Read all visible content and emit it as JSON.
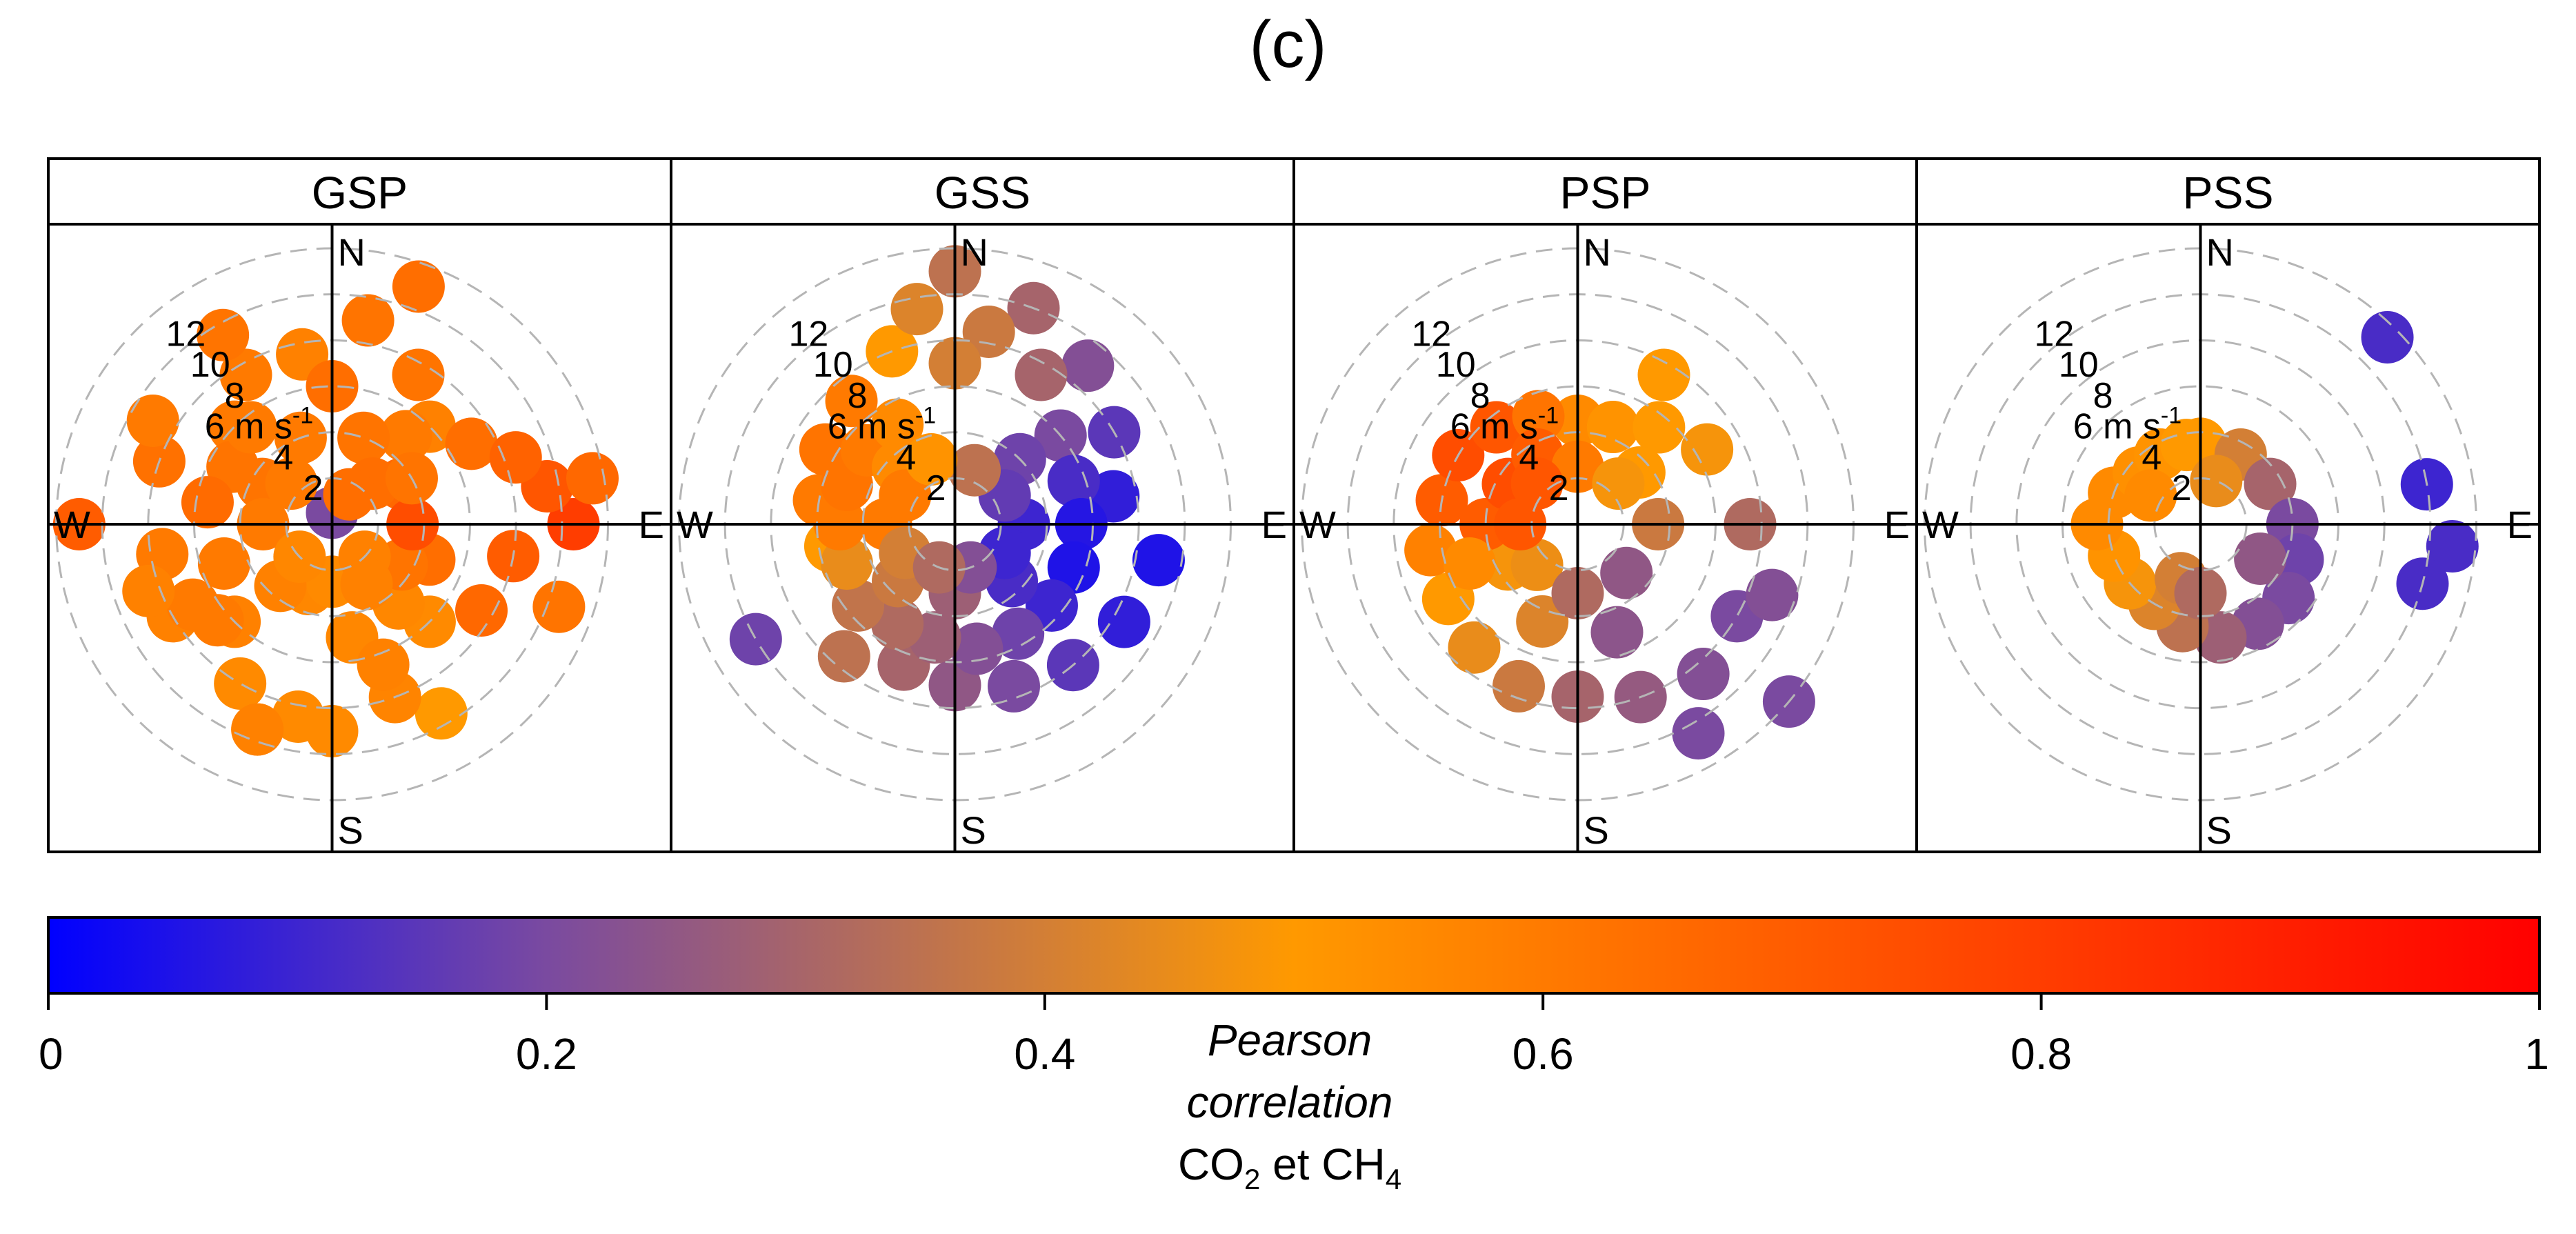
{
  "figure_label": "(c)",
  "chart_data": {
    "type": "polar-scatter",
    "panels": [
      {
        "name": "GSP",
        "points": [
          [
            180,
            0.55
          ],
          [
            150,
            0.5
          ],
          [
            200,
            0.6
          ],
          [
            90,
            0.8
          ],
          [
            270,
            0.7
          ],
          [
            0,
            0.2
          ],
          [
            45,
            0.58
          ],
          [
            135,
            0.55
          ],
          [
            225,
            0.58
          ],
          [
            315,
            0.6
          ],
          [
            30,
            0.62
          ],
          [
            60,
            0.64
          ],
          [
            100,
            0.7
          ],
          [
            120,
            0.66
          ],
          [
            160,
            0.57
          ],
          [
            190,
            0.55
          ],
          [
            210,
            0.55
          ],
          [
            240,
            0.58
          ],
          [
            260,
            0.6
          ],
          [
            290,
            0.63
          ],
          [
            330,
            0.6
          ],
          [
            350,
            0.58
          ],
          [
            10,
            0.62
          ],
          [
            80,
            0.72
          ],
          [
            70,
            0.68
          ],
          [
            230,
            0.6
          ],
          [
            300,
            0.62
          ],
          [
            320,
            0.6
          ],
          [
            170,
            0.56
          ],
          [
            110,
            0.64
          ],
          [
            40,
            0.6
          ],
          [
            280,
            0.65
          ],
          [
            250,
            0.6
          ],
          [
            140,
            0.56
          ],
          [
            200,
            0.56
          ],
          [
            20,
            0.62
          ],
          [
            340,
            0.6
          ],
          [
            180,
            0.55
          ],
          [
            60,
            0.66
          ],
          [
            300,
            0.62
          ],
          [
            120,
            0.62
          ],
          [
            90,
            0.75
          ],
          [
            270,
            0.6
          ],
          [
            220,
            0.58
          ],
          [
            45,
            0.64
          ],
          [
            315,
            0.6
          ],
          [
            135,
            0.58
          ],
          [
            225,
            0.56
          ],
          [
            160,
            0.58
          ],
          [
            240,
            0.6
          ],
          [
            20,
            0.64
          ],
          [
            330,
            0.62
          ],
          [
            80,
            0.66
          ],
          [
            110,
            0.62
          ],
          [
            200,
            0.58
          ],
          [
            0,
            0.64
          ],
          [
            150,
            0.58
          ],
          [
            300,
            0.6
          ],
          [
            60,
            0.62
          ],
          [
            250,
            0.58
          ],
          [
            30,
            0.64
          ]
        ],
        "radii": [
          9.0,
          9.5,
          9.5,
          10.5,
          11.0,
          0.5,
          6.0,
          6.0,
          6.0,
          6.0,
          7.5,
          7.0,
          8.0,
          7.5,
          8.0,
          8.5,
          8.0,
          8.0,
          7.5,
          8.0,
          7.5,
          7.5,
          9.0,
          9.5,
          8.5,
          6.5,
          5.0,
          5.5,
          5.0,
          4.5,
          5.0,
          5.5,
          5.0,
          4.5,
          3.0,
          4.0,
          4.0,
          2.5,
          3.5,
          3.5,
          3.5,
          3.5,
          3.0,
          3.5,
          2.5,
          2.5,
          2.0,
          2.0,
          6.5,
          7.0,
          11.0,
          9.5,
          11.5,
          10.5,
          9.5,
          6.0,
          3.0,
          9.0,
          4.0,
          8.5,
          1.5
        ]
      },
      {
        "name": "GSS",
        "points": [
          [
            0,
            0.35
          ],
          [
            20,
            0.3
          ],
          [
            40,
            0.22
          ],
          [
            60,
            0.15
          ],
          [
            80,
            0.08
          ],
          [
            100,
            0.05
          ],
          [
            120,
            0.08
          ],
          [
            140,
            0.15
          ],
          [
            160,
            0.2
          ],
          [
            180,
            0.25
          ],
          [
            200,
            0.3
          ],
          [
            220,
            0.35
          ],
          [
            240,
            0.18
          ],
          [
            260,
            0.5
          ],
          [
            280,
            0.6
          ],
          [
            300,
            0.62
          ],
          [
            320,
            0.6
          ],
          [
            340,
            0.5
          ],
          [
            350,
            0.42
          ],
          [
            10,
            0.38
          ],
          [
            30,
            0.3
          ],
          [
            50,
            0.2
          ],
          [
            70,
            0.12
          ],
          [
            90,
            0.06
          ],
          [
            110,
            0.05
          ],
          [
            130,
            0.1
          ],
          [
            150,
            0.18
          ],
          [
            170,
            0.22
          ],
          [
            190,
            0.28
          ],
          [
            210,
            0.32
          ],
          [
            230,
            0.36
          ],
          [
            250,
            0.45
          ],
          [
            270,
            0.6
          ],
          [
            290,
            0.62
          ],
          [
            310,
            0.6
          ],
          [
            330,
            0.55
          ],
          [
            0,
            0.4
          ],
          [
            45,
            0.18
          ],
          [
            135,
            0.12
          ],
          [
            225,
            0.38
          ],
          [
            315,
            0.55
          ],
          [
            90,
            0.1
          ],
          [
            180,
            0.28
          ],
          [
            270,
            0.6
          ],
          [
            60,
            0.16
          ],
          [
            120,
            0.1
          ],
          [
            240,
            0.4
          ],
          [
            300,
            0.6
          ],
          [
            20,
            0.35
          ],
          [
            160,
            0.22
          ],
          [
            200,
            0.32
          ],
          [
            340,
            0.52
          ]
        ],
        "radii": [
          11.0,
          10.0,
          9.0,
          8.0,
          7.0,
          9.0,
          8.5,
          8.0,
          7.5,
          7.0,
          6.5,
          7.5,
          10.0,
          5.5,
          6.0,
          6.5,
          7.0,
          8.0,
          9.5,
          8.5,
          7.5,
          6.0,
          5.5,
          5.5,
          5.5,
          5.5,
          5.5,
          5.5,
          5.0,
          5.0,
          5.5,
          5.0,
          5.0,
          5.0,
          5.0,
          5.0,
          7.0,
          4.0,
          3.5,
          3.5,
          3.5,
          3.0,
          3.0,
          3.0,
          2.5,
          2.5,
          2.5,
          2.5,
          2.5,
          2.0,
          2.0,
          3.0
        ]
      },
      {
        "name": "PSP",
        "points": [
          [
            0,
            0.55
          ],
          [
            20,
            0.52
          ],
          [
            40,
            0.5
          ],
          [
            60,
            0.48
          ],
          [
            90,
            0.32
          ],
          [
            120,
            0.2
          ],
          [
            140,
            0.22
          ],
          [
            160,
            0.26
          ],
          [
            180,
            0.3
          ],
          [
            200,
            0.38
          ],
          [
            220,
            0.45
          ],
          [
            240,
            0.5
          ],
          [
            260,
            0.58
          ],
          [
            280,
            0.7
          ],
          [
            300,
            0.75
          ],
          [
            320,
            0.72
          ],
          [
            340,
            0.62
          ],
          [
            30,
            0.5
          ],
          [
            50,
            0.5
          ],
          [
            110,
            0.22
          ],
          [
            150,
            0.2
          ],
          [
            130,
            0.2
          ],
          [
            200,
            0.42
          ],
          [
            240,
            0.48
          ],
          [
            270,
            0.7
          ],
          [
            300,
            0.75
          ],
          [
            330,
            0.7
          ],
          [
            0,
            0.6
          ],
          [
            45,
            0.48
          ],
          [
            135,
            0.25
          ],
          [
            225,
            0.46
          ],
          [
            315,
            0.72
          ],
          [
            90,
            0.38
          ],
          [
            180,
            0.32
          ],
          [
            270,
            0.72
          ],
          [
            160,
            0.24
          ],
          [
            250,
            0.55
          ]
        ],
        "radii": [
          4.5,
          4.5,
          5.5,
          6.5,
          7.5,
          8.0,
          8.5,
          8.0,
          7.5,
          7.5,
          7.0,
          6.5,
          6.5,
          6.0,
          6.0,
          5.5,
          5.0,
          7.5,
          3.5,
          9.0,
          10.5,
          12.0,
          4.5,
          3.5,
          4.0,
          3.5,
          3.5,
          2.5,
          2.5,
          3.0,
          2.5,
          2.5,
          3.5,
          3.0,
          2.5,
          5.0,
          5.0
        ]
      },
      {
        "name": "PSS",
        "points": [
          [
            0,
            0.5
          ],
          [
            30,
            0.4
          ],
          [
            60,
            0.3
          ],
          [
            90,
            0.2
          ],
          [
            110,
            0.18
          ],
          [
            130,
            0.2
          ],
          [
            150,
            0.22
          ],
          [
            170,
            0.28
          ],
          [
            190,
            0.35
          ],
          [
            210,
            0.42
          ],
          [
            230,
            0.48
          ],
          [
            250,
            0.52
          ],
          [
            270,
            0.55
          ],
          [
            290,
            0.55
          ],
          [
            310,
            0.53
          ],
          [
            330,
            0.52
          ],
          [
            350,
            0.5
          ],
          [
            45,
            0.12
          ],
          [
            80,
            0.1
          ],
          [
            95,
            0.12
          ],
          [
            105,
            0.12
          ],
          [
            20,
            0.45
          ],
          [
            120,
            0.25
          ],
          [
            200,
            0.4
          ],
          [
            300,
            0.55
          ],
          [
            180,
            0.32
          ]
        ],
        "radii": [
          3.5,
          3.5,
          3.5,
          4.0,
          4.5,
          5.0,
          5.0,
          5.0,
          4.5,
          4.0,
          4.0,
          4.0,
          4.5,
          4.0,
          3.5,
          3.5,
          3.5,
          11.5,
          10.0,
          11.0,
          10.0,
          2.0,
          3.0,
          2.5,
          2.5,
          3.0
        ]
      }
    ],
    "point_format": "[wind direction in degrees clockwise from N, Pearson correlation]",
    "radius_unit": "m s-1",
    "ring_values": [
      2,
      4,
      6,
      8,
      10,
      12
    ],
    "r_max": 12,
    "compass_labels": [
      "N",
      "E",
      "S",
      "W"
    ],
    "ring_label_text": {
      "two": "2",
      "four": "4",
      "six": "6 m s",
      "six_sup": "-1",
      "eight": "8",
      "ten": "10",
      "twelve": "12"
    },
    "colorbar": {
      "min": 0,
      "max": 1,
      "ticks": [
        "0",
        "0.2",
        "0.4",
        "0.6",
        "0.8",
        "1"
      ],
      "stops": [
        "#0000ff",
        "#7a4aa0",
        "#ff9900",
        "#ff0000"
      ],
      "title_line1": "Pearson",
      "title_line2": "correlation",
      "title_line3_parts": [
        "CO",
        "2",
        " et CH",
        "4"
      ]
    }
  }
}
